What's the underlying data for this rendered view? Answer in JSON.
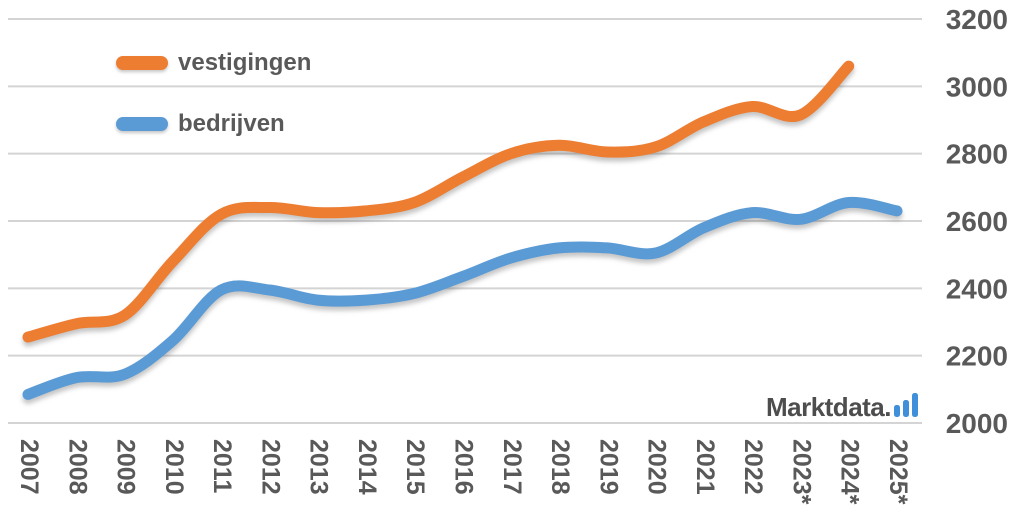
{
  "chart_data": {
    "type": "line",
    "title": "",
    "xlabel": "",
    "ylabel": "",
    "categories": [
      "2007",
      "2008",
      "2009",
      "2010",
      "2011",
      "2012",
      "2013",
      "2014",
      "2015",
      "2016",
      "2017",
      "2018",
      "2019",
      "2020",
      "2021",
      "2022",
      "2023*",
      "2024*",
      "2025*"
    ],
    "series": [
      {
        "name": "vestigingen",
        "color": "#ED7D31",
        "values": [
          2255,
          2295,
          2320,
          2480,
          2620,
          2640,
          2625,
          2630,
          2655,
          2730,
          2800,
          2825,
          2805,
          2820,
          2895,
          2940,
          2915,
          3060,
          null
        ]
      },
      {
        "name": "bedrijven",
        "color": "#5B9BD5",
        "values": [
          2085,
          2135,
          2145,
          2245,
          2395,
          2395,
          2365,
          2365,
          2385,
          2435,
          2490,
          2520,
          2520,
          2505,
          2580,
          2625,
          2605,
          2655,
          2630
        ]
      }
    ],
    "ylim": [
      2000,
      3200
    ],
    "yticks": [
      3200,
      3000,
      2800,
      2600,
      2400,
      2200,
      2000
    ],
    "grid": true,
    "legend_position": "top-left-inside",
    "line_style": "smooth",
    "x_tick_rotation_deg": 90
  },
  "branding": {
    "text": "Marktdata.",
    "icon": "bar-chart-icon",
    "icon_color": "#3F8FDA"
  },
  "colors": {
    "axis_label": "#595959",
    "gridline": "#d4d4d4",
    "background": "#ffffff"
  }
}
